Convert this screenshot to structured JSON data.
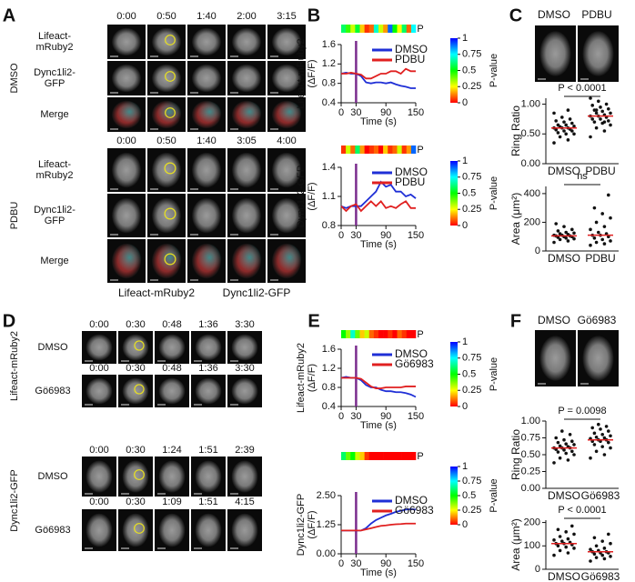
{
  "panels": {
    "A": {
      "label": "A",
      "groups": [
        {
          "condition": "DMSO",
          "times": [
            "0:00",
            "0:50",
            "1:40",
            "2:00",
            "3:15"
          ],
          "rows": [
            [
              "Lifeact-",
              "mRuby2"
            ],
            [
              "Dync1li2-",
              "GFP"
            ],
            [
              "Merge"
            ]
          ]
        },
        {
          "condition": "PDBU",
          "times": [
            "0:00",
            "0:50",
            "1:40",
            "3:05",
            "4:00"
          ],
          "rows": [
            [
              "Lifeact-",
              "mRuby2"
            ],
            [
              "Dync1li2-",
              "GFP"
            ],
            [
              "Merge"
            ]
          ]
        }
      ],
      "legend": [
        "Lifeact-mRuby2",
        "Dync1li2-GFP"
      ]
    },
    "B": {
      "label": "B"
    },
    "C": {
      "label": "C",
      "image_labels": [
        "DMSO",
        "PDBU"
      ]
    },
    "D": {
      "label": "D",
      "sections": [
        {
          "channel": "Lifeact-mRuby2",
          "groups": [
            {
              "condition": "DMSO",
              "times": [
                "0:00",
                "0:30",
                "0:48",
                "1:36",
                "3:30"
              ]
            },
            {
              "condition": "Gö6983",
              "times": [
                "0:00",
                "0:30",
                "0:48",
                "1:36",
                "3:30"
              ]
            }
          ]
        },
        {
          "channel": "Dync1li2-GFP",
          "groups": [
            {
              "condition": "DMSO",
              "times": [
                "0:00",
                "0:30",
                "1:24",
                "1:51",
                "2:39"
              ]
            },
            {
              "condition": "Gö6983",
              "times": [
                "0:00",
                "0:30",
                "1:09",
                "1:51",
                "4:15"
              ]
            }
          ]
        }
      ]
    },
    "E": {
      "label": "E"
    },
    "F": {
      "label": "F",
      "image_labels": [
        "DMSO",
        "Gö6983"
      ]
    }
  },
  "chart_data": [
    {
      "type": "line",
      "ylabel": [
        "Lifeact-mRuby2",
        "(ΔF/F)"
      ],
      "xlabel": "Time (s)",
      "x": [
        0,
        10,
        20,
        30,
        40,
        50,
        60,
        70,
        80,
        90,
        100,
        110,
        120,
        130,
        140,
        150
      ],
      "series": [
        {
          "name": "DMSO",
          "color": "#1f2fd6",
          "values": [
            1.0,
            1.02,
            1.0,
            1.0,
            0.95,
            0.82,
            0.8,
            0.82,
            0.82,
            0.8,
            0.82,
            0.78,
            0.75,
            0.73,
            0.7,
            0.7
          ]
        },
        {
          "name": "PDBU",
          "color": "#e02020",
          "values": [
            1.0,
            1.0,
            1.02,
            1.0,
            0.98,
            0.9,
            0.9,
            0.95,
            1.0,
            1.0,
            1.05,
            1.05,
            1.0,
            1.1,
            1.05,
            1.05
          ]
        }
      ],
      "xlim": [
        0,
        150
      ],
      "xticks": [
        0,
        30,
        90,
        150
      ],
      "ylim": [
        0.4,
        1.6
      ],
      "yticks": [
        0.4,
        0.8,
        1.2,
        1.6
      ],
      "marker_x": 30,
      "marker_color": "#7b2d8e",
      "pvalues": [
        0.6,
        0.45,
        0.3,
        0.55,
        0.2,
        0.05,
        0.1,
        0.7,
        0.3,
        0.15,
        0.9,
        0.5,
        0.25,
        0.6,
        0.1,
        0.75
      ],
      "pvalue_label": "P",
      "colorbar": {
        "label": "P-value",
        "ticks": [
          0,
          0.25,
          0.5,
          0.75,
          1
        ]
      }
    },
    {
      "type": "line",
      "ylabel": [
        "Dync1li2-GFP",
        "(ΔF/F)"
      ],
      "xlabel": "Time (s)",
      "x": [
        0,
        10,
        20,
        30,
        40,
        50,
        60,
        70,
        80,
        90,
        100,
        110,
        120,
        130,
        140,
        150
      ],
      "series": [
        {
          "name": "DMSO",
          "color": "#1f2fd6",
          "values": [
            1.0,
            0.98,
            1.0,
            1.0,
            1.0,
            1.05,
            1.1,
            1.15,
            1.25,
            1.2,
            1.22,
            1.15,
            1.15,
            1.1,
            1.12,
            1.08
          ]
        },
        {
          "name": "PDBU",
          "color": "#e02020",
          "values": [
            1.0,
            0.95,
            1.0,
            1.02,
            0.95,
            1.0,
            1.05,
            1.0,
            1.05,
            0.98,
            1.0,
            0.98,
            1.02,
            1.05,
            0.98,
            0.98
          ]
        }
      ],
      "xlim": [
        0,
        150
      ],
      "xticks": [
        0,
        30,
        90,
        150
      ],
      "ylim": [
        0.8,
        1.4
      ],
      "yticks": [
        0.8,
        1.1,
        1.4
      ],
      "marker_x": 30,
      "marker_color": "#7b2d8e",
      "pvalues": [
        0.05,
        0.3,
        0.1,
        0.6,
        0.15,
        0.0,
        0.05,
        0.1,
        0.0,
        0.2,
        0.05,
        0.1,
        0.3,
        0.05,
        0.15,
        0.9
      ],
      "pvalue_label": "P",
      "colorbar": {
        "label": "P-value",
        "ticks": [
          0,
          0.25,
          0.5,
          0.75,
          1
        ]
      }
    },
    {
      "type": "dot",
      "ylabel": "Ring Ratio",
      "categories": [
        "DMSO",
        "PDBU"
      ],
      "groups": [
        {
          "values": [
            0.35,
            0.4,
            0.45,
            0.5,
            0.5,
            0.52,
            0.55,
            0.55,
            0.57,
            0.58,
            0.6,
            0.6,
            0.6,
            0.62,
            0.63,
            0.65,
            0.65,
            0.68,
            0.7,
            0.72,
            0.75,
            0.78,
            0.85,
            0.9
          ],
          "median": 0.6
        },
        {
          "values": [
            0.45,
            0.55,
            0.6,
            0.65,
            0.68,
            0.7,
            0.72,
            0.75,
            0.75,
            0.78,
            0.8,
            0.8,
            0.82,
            0.85,
            0.85,
            0.88,
            0.9,
            0.92,
            0.95,
            0.98,
            1.0,
            1.05,
            1.1,
            0.7,
            0.9
          ],
          "median": 0.8
        }
      ],
      "color": "#111111",
      "median_color": "#e02020",
      "annotation": "P < 0.0001",
      "ylim": [
        0,
        1.1
      ],
      "yticks": [
        {
          "value": 0,
          "label": "0.00"
        },
        {
          "value": 0.5,
          "label": "0.50"
        },
        {
          "value": 1,
          "label": "1.00"
        }
      ]
    },
    {
      "type": "dot",
      "ylabel": "Area (μm²)",
      "categories": [
        "DMSO",
        "PDBU"
      ],
      "groups": [
        {
          "values": [
            60,
            70,
            80,
            85,
            90,
            95,
            100,
            100,
            105,
            105,
            110,
            110,
            115,
            120,
            125,
            130,
            140,
            150,
            170,
            190
          ],
          "median": 105
        },
        {
          "values": [
            40,
            50,
            60,
            70,
            80,
            90,
            100,
            110,
            110,
            120,
            130,
            150,
            170,
            200,
            230,
            260,
            300,
            390
          ],
          "median": 110
        }
      ],
      "color": "#111111",
      "median_color": "#e02020",
      "annotation": "ns",
      "ylim": [
        0,
        450
      ],
      "yticks": [
        0,
        200,
        400
      ]
    },
    {
      "type": "line",
      "ylabel": [
        "Lifeact-mRuby2",
        "(ΔF/F)"
      ],
      "xlabel": "Time (s)",
      "x": [
        0,
        10,
        20,
        30,
        40,
        50,
        60,
        70,
        80,
        90,
        100,
        110,
        120,
        130,
        140,
        150
      ],
      "series": [
        {
          "name": "DMSO",
          "color": "#1f2fd6",
          "values": [
            1.0,
            1.02,
            1.0,
            1.0,
            0.95,
            0.85,
            0.8,
            0.8,
            0.75,
            0.72,
            0.72,
            0.7,
            0.7,
            0.68,
            0.65,
            0.6
          ]
        },
        {
          "name": "Gö6983",
          "color": "#e02020",
          "values": [
            1.0,
            1.0,
            1.0,
            1.0,
            0.98,
            0.9,
            0.82,
            0.78,
            0.78,
            0.8,
            0.8,
            0.8,
            0.8,
            0.82,
            0.82,
            0.82
          ]
        }
      ],
      "xlim": [
        0,
        150
      ],
      "xticks": [
        0,
        30,
        90,
        150
      ],
      "ylim": [
        0.4,
        1.6
      ],
      "yticks": [
        0.4,
        0.8,
        1.2,
        1.6
      ],
      "marker_x": 30,
      "marker_color": "#7b2d8e",
      "pvalues": [
        0.5,
        0.35,
        0.7,
        0.4,
        0.2,
        0.3,
        0.1,
        0.05,
        0.0,
        0.0,
        0.05,
        0.0,
        0.1,
        0.05,
        0.0,
        0.0
      ],
      "pvalue_label": "P",
      "colorbar": {
        "label": "P-value",
        "ticks": [
          0,
          0.25,
          0.5,
          0.75,
          1
        ]
      }
    },
    {
      "type": "line",
      "ylabel": [
        "Dync1li2-GFP",
        "(ΔF/F)"
      ],
      "xlabel": "Time (s)",
      "x": [
        0,
        10,
        20,
        30,
        40,
        50,
        60,
        70,
        80,
        90,
        100,
        110,
        120,
        130,
        140,
        150
      ],
      "series": [
        {
          "name": "DMSO",
          "color": "#1f2fd6",
          "values": [
            1.0,
            1.0,
            1.0,
            1.0,
            1.0,
            1.1,
            1.3,
            1.45,
            1.55,
            1.65,
            1.72,
            1.8,
            1.85,
            1.9,
            1.92,
            1.9
          ]
        },
        {
          "name": "Gö6983",
          "color": "#e02020",
          "values": [
            1.0,
            1.0,
            1.0,
            1.0,
            1.0,
            1.05,
            1.1,
            1.15,
            1.2,
            1.22,
            1.25,
            1.27,
            1.28,
            1.3,
            1.3,
            1.3
          ]
        }
      ],
      "xlim": [
        0,
        150
      ],
      "xticks": [
        0,
        30,
        90,
        150
      ],
      "ylim": [
        0,
        2.5
      ],
      "yticks": [
        {
          "value": 0,
          "label": "0.00"
        },
        {
          "value": 1.25,
          "label": "1.25"
        },
        {
          "value": 2.5,
          "label": "2.50"
        }
      ],
      "marker_x": 30,
      "marker_color": "#7b2d8e",
      "pvalues": [
        0.6,
        0.4,
        0.5,
        0.3,
        0.2,
        0.05,
        0.0,
        0.0,
        0.0,
        0.0,
        0.0,
        0.0,
        0.0,
        0.0,
        0.0,
        0.0
      ],
      "pvalue_label": "P",
      "colorbar": {
        "label": "P-value",
        "ticks": [
          0,
          0.25,
          0.5,
          0.75,
          1
        ]
      }
    },
    {
      "type": "dot",
      "ylabel": "Ring Ratio",
      "categories": [
        "DMSO",
        "Gö6983"
      ],
      "groups": [
        {
          "values": [
            0.38,
            0.42,
            0.45,
            0.5,
            0.52,
            0.54,
            0.55,
            0.57,
            0.58,
            0.6,
            0.6,
            0.6,
            0.62,
            0.63,
            0.65,
            0.66,
            0.68,
            0.7,
            0.72,
            0.75,
            0.8,
            0.85
          ],
          "median": 0.6
        },
        {
          "values": [
            0.45,
            0.5,
            0.55,
            0.6,
            0.62,
            0.65,
            0.68,
            0.7,
            0.7,
            0.72,
            0.72,
            0.74,
            0.75,
            0.76,
            0.78,
            0.8,
            0.82,
            0.85,
            0.88,
            0.9,
            0.92,
            0.95
          ],
          "median": 0.72
        }
      ],
      "color": "#111111",
      "median_color": "#e02020",
      "annotation": "P = 0.0098",
      "ylim": [
        0,
        1.0
      ],
      "yticks": [
        {
          "value": 0,
          "label": "0.00"
        },
        {
          "value": 0.25,
          "label": "0.25"
        },
        {
          "value": 0.5,
          "label": "0.50"
        },
        {
          "value": 0.75,
          "label": "0.75"
        },
        {
          "value": 1,
          "label": "1.00"
        }
      ]
    },
    {
      "type": "dot",
      "ylabel": "Area (μm²)",
      "categories": [
        "DMSO",
        "Gö6983"
      ],
      "groups": [
        {
          "values": [
            60,
            70,
            80,
            90,
            95,
            100,
            105,
            110,
            110,
            115,
            120,
            125,
            130,
            140,
            150,
            160,
            170,
            185
          ],
          "median": 110
        },
        {
          "values": [
            35,
            45,
            50,
            55,
            60,
            65,
            70,
            70,
            75,
            75,
            80,
            85,
            90,
            100,
            110,
            120,
            135,
            150
          ],
          "median": 75
        }
      ],
      "color": "#111111",
      "median_color": "#e02020",
      "annotation": "P < 0.0001",
      "ylim": [
        0,
        210
      ],
      "yticks": [
        0,
        100,
        200
      ]
    }
  ]
}
